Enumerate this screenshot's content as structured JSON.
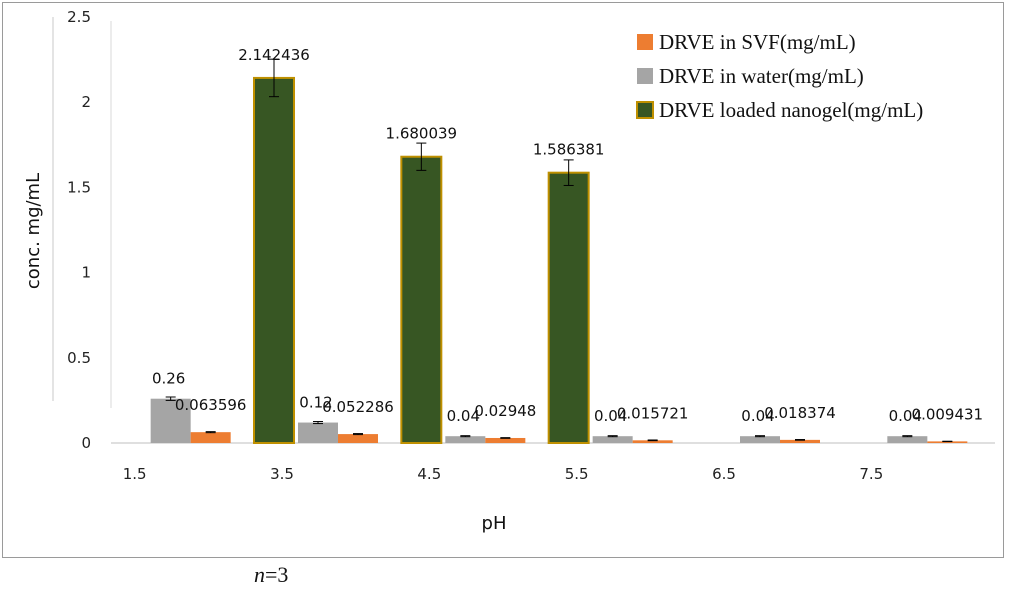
{
  "chart_data": {
    "type": "bar",
    "categories": [
      "1.5",
      "3.5",
      "4.5",
      "5.5",
      "6.5",
      "7.5"
    ],
    "xlabel": "pH",
    "ylabel": "conc. mg/mL",
    "ylim": [
      0,
      2.5
    ],
    "yticks": [
      "0",
      "0.5",
      "1",
      "1.5",
      "2",
      "2.5"
    ],
    "grid": false,
    "legend_position": "top-right",
    "series": [
      {
        "name": "DRVE loaded nanogel(mg/mL)",
        "color": "#375623",
        "border": "#bf9000",
        "values": [
          null,
          2.142436,
          1.680039,
          1.586381,
          null,
          null
        ],
        "labels": [
          "",
          "2.142436",
          "1.680039",
          "1.586381",
          "",
          ""
        ],
        "errors": [
          null,
          0.11,
          0.08,
          0.075,
          null,
          null
        ]
      },
      {
        "name": "DRVE in water(mg/mL)",
        "color": "#a5a5a5",
        "values": [
          0.26,
          0.12,
          0.04,
          0.04,
          0.04,
          0.04
        ],
        "labels": [
          "0.26",
          "0.12",
          "0.04",
          "0.04",
          "0.04",
          "0.04"
        ],
        "errors": [
          0.01,
          0.006,
          0.003,
          0.003,
          0.003,
          0.003
        ]
      },
      {
        "name": "DRVE in SVF(mg/mL)",
        "color": "#ed7d31",
        "values": [
          0.063596,
          0.052286,
          0.02948,
          0.015721,
          0.018374,
          0.009431
        ],
        "labels": [
          "0.063596",
          "0.052286",
          "0.02948",
          "0.015721",
          "0.018374",
          "0.009431"
        ],
        "errors": [
          0.003,
          0.003,
          0.002,
          0.002,
          0.002,
          0.001
        ]
      }
    ],
    "legend": [
      "DRVE in SVF(mg/mL)",
      "DRVE in water(mg/mL)",
      "DRVE loaded nanogel(mg/mL)"
    ]
  },
  "note": {
    "italic": "n",
    "rest": "=3"
  }
}
